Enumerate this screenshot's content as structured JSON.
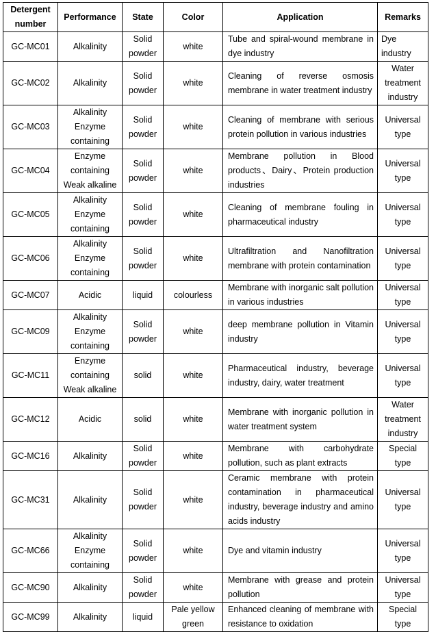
{
  "table": {
    "header": [
      "Detergent number",
      "Performance",
      "State",
      "Color",
      "Application",
      "Remarks"
    ],
    "rows": [
      [
        "GC-MC01",
        "Alkalinity",
        "Solid powder",
        "white",
        "Tube and spiral-wound membrane in dye industry",
        "Dye industry"
      ],
      [
        "GC-MC02",
        "Alkalinity",
        "Solid powder",
        "white",
        "Cleaning of reverse osmosis membrane in water treatment industry",
        "Water treatment industry"
      ],
      [
        "GC-MC03",
        "Alkalinity Enzyme containing",
        "Solid powder",
        "white",
        "Cleaning of membrane with serious protein pollution in various industries",
        "Universal type"
      ],
      [
        "GC-MC04",
        "Enzyme containing Weak alkaline",
        "Solid powder",
        "white",
        "Membrane pollution in Blood products、Dairy、Protein production industries",
        "Universal type"
      ],
      [
        "GC-MC05",
        "Alkalinity Enzyme containing",
        "Solid powder",
        "white",
        "Cleaning of membrane fouling in pharmaceutical industry",
        "Universal type"
      ],
      [
        "GC-MC06",
        "Alkalinity Enzyme containing",
        "Solid powder",
        "white",
        "Ultrafiltration and Nanofiltration membrane with protein contamination",
        "Universal type"
      ],
      [
        "GC-MC07",
        "Acidic",
        "liquid",
        "colourless",
        "Membrane with inorganic salt pollution in various industries",
        "Universal type"
      ],
      [
        "GC-MC09",
        "Alkalinity Enzyme containing",
        "Solid powder",
        "white",
        "deep membrane pollution in Vitamin industry",
        "Universal type"
      ],
      [
        "GC-MC11",
        "Enzyme containing Weak alkaline",
        "solid",
        "white",
        "Pharmaceutical industry, beverage industry, dairy, water treatment",
        "Universal type"
      ],
      [
        "GC-MC12",
        "Acidic",
        "solid",
        "white",
        "Membrane with inorganic pollution in water treatment system",
        "Water treatment industry"
      ],
      [
        "GC-MC16",
        "Alkalinity",
        "Solid powder",
        "white",
        "Membrane with carbohydrate pollution, such as plant extracts",
        "Special type"
      ],
      [
        "GC-MC31",
        "Alkalinity",
        "Solid powder",
        "white",
        "Ceramic membrane with protein contamination in pharmaceutical industry, beverage industry and amino acids industry",
        "Universal type"
      ],
      [
        "GC-MC66",
        "Alkalinity Enzyme containing",
        "Solid powder",
        "white",
        "Dye and vitamin industry",
        "Universal type"
      ],
      [
        "GC-MC90",
        "Alkalinity",
        "Solid powder",
        "white",
        "Membrane with grease and protein pollution",
        "Universal type"
      ],
      [
        "GC-MC99",
        "Alkalinity",
        "liquid",
        "Pale yellow green",
        "Enhanced cleaning of membrane with resistance to oxidation",
        "Special type"
      ]
    ]
  }
}
